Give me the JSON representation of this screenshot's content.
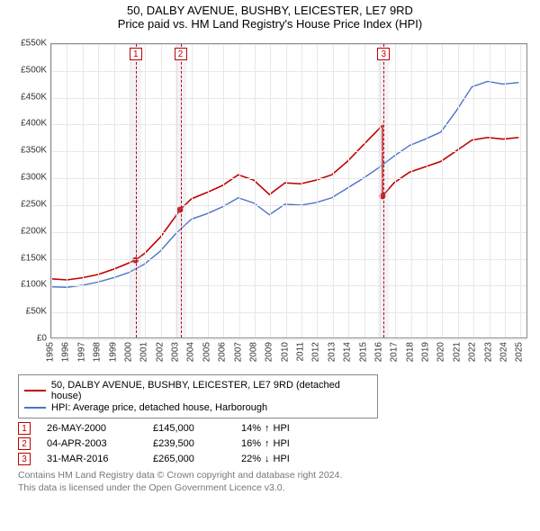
{
  "title": {
    "line1": "50, DALBY AVENUE, BUSHBY, LEICESTER, LE7 9RD",
    "line2": "Price paid vs. HM Land Registry's House Price Index (HPI)"
  },
  "chart": {
    "type": "line",
    "background_color": "#ffffff",
    "grid_color": "#e8e8e8",
    "x_years": [
      1995,
      1996,
      1997,
      1998,
      1999,
      2000,
      2001,
      2002,
      2003,
      2004,
      2005,
      2006,
      2007,
      2008,
      2009,
      2010,
      2011,
      2012,
      2013,
      2014,
      2015,
      2016,
      2017,
      2018,
      2019,
      2020,
      2021,
      2022,
      2023,
      2024,
      2025
    ],
    "xlim": [
      1995,
      2025.5
    ],
    "ylim": [
      0,
      550000
    ],
    "ytick_step": 50000,
    "ytick_labels": [
      "£0",
      "£50K",
      "£100K",
      "£150K",
      "£200K",
      "£250K",
      "£300K",
      "£350K",
      "£400K",
      "£450K",
      "£500K",
      "£550K"
    ],
    "series": [
      {
        "name": "50, DALBY AVENUE, BUSHBY, LEICESTER, LE7 9RD (detached house)",
        "color": "#c00000",
        "width": 1.6,
        "points": [
          [
            1995,
            110000
          ],
          [
            1996,
            108000
          ],
          [
            1997,
            112000
          ],
          [
            1998,
            118000
          ],
          [
            1999,
            128000
          ],
          [
            2000,
            140000
          ],
          [
            2000.4,
            145000
          ],
          [
            2001,
            158000
          ],
          [
            2002,
            188000
          ],
          [
            2003,
            228000
          ],
          [
            2003.26,
            239500
          ],
          [
            2004,
            260000
          ],
          [
            2005,
            272000
          ],
          [
            2006,
            285000
          ],
          [
            2007,
            305000
          ],
          [
            2008,
            295000
          ],
          [
            2009,
            268000
          ],
          [
            2010,
            290000
          ],
          [
            2011,
            288000
          ],
          [
            2012,
            295000
          ],
          [
            2013,
            305000
          ],
          [
            2014,
            330000
          ],
          [
            2015,
            360000
          ],
          [
            2016,
            390000
          ],
          [
            2016.25,
            398000
          ],
          [
            2016.25,
            265000
          ],
          [
            2017,
            290000
          ],
          [
            2018,
            310000
          ],
          [
            2019,
            320000
          ],
          [
            2020,
            330000
          ],
          [
            2021,
            350000
          ],
          [
            2022,
            370000
          ],
          [
            2023,
            375000
          ],
          [
            2024,
            372000
          ],
          [
            2025,
            375000
          ]
        ],
        "markers": [
          {
            "x": 2000.4,
            "y": 145000,
            "shape": "circle"
          },
          {
            "x": 2003.26,
            "y": 239500,
            "shape": "circle"
          },
          {
            "x": 2016.25,
            "y": 265000,
            "shape": "circle"
          }
        ]
      },
      {
        "name": "HPI: Average price, detached house, Harborough",
        "color": "#4a74c9",
        "width": 1.4,
        "points": [
          [
            1995,
            95000
          ],
          [
            1996,
            94000
          ],
          [
            1997,
            98000
          ],
          [
            1998,
            104000
          ],
          [
            1999,
            112000
          ],
          [
            2000,
            122000
          ],
          [
            2001,
            138000
          ],
          [
            2002,
            162000
          ],
          [
            2003,
            195000
          ],
          [
            2004,
            222000
          ],
          [
            2005,
            232000
          ],
          [
            2006,
            245000
          ],
          [
            2007,
            262000
          ],
          [
            2008,
            252000
          ],
          [
            2009,
            230000
          ],
          [
            2010,
            250000
          ],
          [
            2011,
            248000
          ],
          [
            2012,
            253000
          ],
          [
            2013,
            262000
          ],
          [
            2014,
            280000
          ],
          [
            2015,
            298000
          ],
          [
            2016,
            318000
          ],
          [
            2017,
            340000
          ],
          [
            2018,
            360000
          ],
          [
            2019,
            372000
          ],
          [
            2020,
            385000
          ],
          [
            2021,
            425000
          ],
          [
            2022,
            470000
          ],
          [
            2023,
            480000
          ],
          [
            2024,
            475000
          ],
          [
            2025,
            478000
          ]
        ]
      }
    ],
    "event_bands": [
      {
        "label": "1",
        "x": 2000.4,
        "color": "#c00000"
      },
      {
        "label": "2",
        "x": 2003.26,
        "color": "#c00000"
      },
      {
        "label": "3",
        "x": 2016.25,
        "color": "#c00000"
      }
    ]
  },
  "legend": {
    "items": [
      {
        "color": "#c00000",
        "label": "50, DALBY AVENUE, BUSHBY, LEICESTER, LE7 9RD (detached house)"
      },
      {
        "color": "#4a74c9",
        "label": "HPI: Average price, detached house, Harborough"
      }
    ]
  },
  "events_table": [
    {
      "badge": "1",
      "date": "26-MAY-2000",
      "price": "£145,000",
      "delta": "14%",
      "arrow": "↑",
      "suffix": "HPI"
    },
    {
      "badge": "2",
      "date": "04-APR-2003",
      "price": "£239,500",
      "delta": "16%",
      "arrow": "↑",
      "suffix": "HPI"
    },
    {
      "badge": "3",
      "date": "31-MAR-2016",
      "price": "£265,000",
      "delta": "22%",
      "arrow": "↓",
      "suffix": "HPI"
    }
  ],
  "footer": {
    "line1": "Contains HM Land Registry data © Crown copyright and database right 2024.",
    "line2": "This data is licensed under the Open Government Licence v3.0."
  }
}
